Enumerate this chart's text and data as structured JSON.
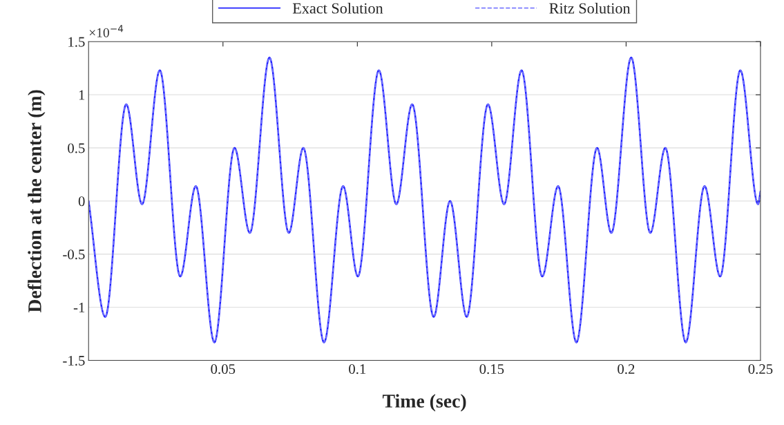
{
  "chart_data": {
    "type": "line",
    "xlabel": "Time (sec)",
    "ylabel": "Deflection at the center (m)",
    "annotations": [
      "×10$^{−4}$"
    ],
    "x": [
      0,
      0.0062,
      0.014,
      0.0199,
      0.0265,
      0.0341,
      0.0399,
      0.0468,
      0.0543,
      0.06,
      0.0673,
      0.0745,
      0.0799,
      0.0876,
      0.0947,
      0.1002,
      0.108,
      0.1145,
      0.1204,
      0.1284,
      0.1345,
      0.1407,
      0.1486,
      0.1546,
      0.1611,
      0.1688,
      0.1747,
      0.1815,
      0.1892,
      0.1945,
      0.2019,
      0.209,
      0.2146,
      0.2222,
      0.2292,
      0.235,
      0.2425,
      0.2491,
      0.25
    ],
    "series": [
      {
        "name": "Exact Solution",
        "color": "#1f1fff",
        "line_style": "solid",
        "values": [
          0,
          -1.09,
          0.91,
          -0.03,
          1.23,
          -0.71,
          0.14,
          -1.33,
          0.5,
          -0.3,
          1.35,
          -0.3,
          0.5,
          -1.33,
          0.14,
          -0.71,
          1.23,
          -0.03,
          0.91,
          -1.09,
          0,
          -1.09,
          0.91,
          -0.03,
          1.23,
          -0.71,
          0.14,
          -1.33,
          0.5,
          -0.3,
          1.35,
          -0.3,
          0.5,
          -1.33,
          0.14,
          -0.71,
          1.23,
          -0.03,
          0.09
        ]
      },
      {
        "name": "Ritz Solution",
        "color": "#7a7aff",
        "line_style": "dashed",
        "values": [
          0,
          -1.09,
          0.91,
          -0.03,
          1.23,
          -0.71,
          0.14,
          -1.33,
          0.5,
          -0.3,
          1.35,
          -0.3,
          0.5,
          -1.33,
          0.14,
          -0.71,
          1.23,
          -0.03,
          0.91,
          -1.09,
          0,
          -1.09,
          0.91,
          -0.03,
          1.23,
          -0.71,
          0.14,
          -1.33,
          0.5,
          -0.3,
          1.35,
          -0.3,
          0.5,
          -1.33,
          0.14,
          -0.71,
          1.23,
          -0.03,
          0.09
        ]
      }
    ],
    "xlim": [
      0,
      0.25
    ],
    "xticks": [
      0.05,
      0.1,
      0.15,
      0.2,
      0.25
    ],
    "ylim": [
      -1.5,
      1.5
    ],
    "yticks": [
      {
        "value": -1.5,
        "label": "-1.5"
      },
      {
        "value": -1,
        "label": "-1"
      },
      {
        "value": -0.5,
        "label": "-0.5"
      },
      0,
      0.5,
      1,
      1.5
    ],
    "grid": "y",
    "legend": "top",
    "marker": "none"
  }
}
